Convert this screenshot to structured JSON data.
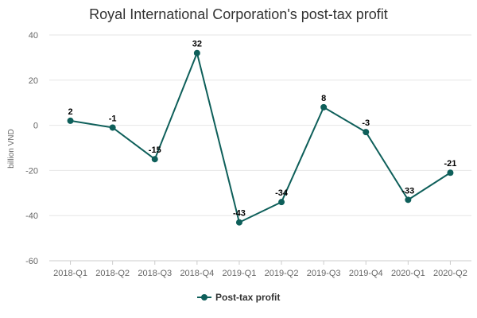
{
  "chart_data": {
    "type": "line",
    "title": "Royal International Corporation's post-tax profit",
    "ylabel": "billion VND",
    "xlabel": "",
    "categories": [
      "2018-Q1",
      "2018-Q2",
      "2018-Q3",
      "2018-Q4",
      "2019-Q1",
      "2019-Q2",
      "2019-Q3",
      "2019-Q4",
      "2020-Q1",
      "2020-Q2"
    ],
    "series": [
      {
        "name": "Post-tax profit",
        "values": [
          2,
          -1,
          -15,
          32,
          -43,
          -34,
          8,
          -3,
          -33,
          -21
        ]
      }
    ],
    "ylim": [
      -60,
      40
    ],
    "yticks": [
      "40",
      "20",
      "0",
      "-20",
      "-40",
      "-60"
    ],
    "grid": true,
    "legend": "bottom-center",
    "data_labels": [
      "2",
      "-1",
      "-15",
      "32",
      "-43",
      "-34",
      "8",
      "-3",
      "-33",
      "-21"
    ],
    "colors": {
      "series": "#0e5f5a",
      "grid": "#e6e6e6",
      "axis": "#cccccc"
    }
  }
}
